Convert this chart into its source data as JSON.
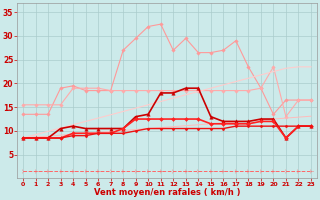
{
  "x": [
    0,
    1,
    2,
    3,
    4,
    5,
    6,
    7,
    8,
    9,
    10,
    11,
    12,
    13,
    14,
    15,
    16,
    17,
    18,
    19,
    20,
    21,
    22,
    23
  ],
  "series": [
    {
      "label": "rafales_spiky",
      "color": "#ff9999",
      "linewidth": 0.8,
      "marker": "D",
      "markersize": 1.8,
      "linestyle": "-",
      "data": [
        13.5,
        13.5,
        13.5,
        19.0,
        19.5,
        18.5,
        18.5,
        18.5,
        27.0,
        29.5,
        32.0,
        32.5,
        27.0,
        29.5,
        26.5,
        26.5,
        27.0,
        29.0,
        23.5,
        19.0,
        13.5,
        16.5,
        16.5,
        16.5
      ]
    },
    {
      "label": "rafales_smooth_high",
      "color": "#ffaaaa",
      "linewidth": 0.8,
      "marker": "D",
      "markersize": 1.8,
      "linestyle": "-",
      "data": [
        15.5,
        15.5,
        15.5,
        15.5,
        19.0,
        19.0,
        19.0,
        18.5,
        18.5,
        18.5,
        18.5,
        18.5,
        18.5,
        18.5,
        18.5,
        18.5,
        18.5,
        18.5,
        18.5,
        19.0,
        23.5,
        13.0,
        16.5,
        16.5
      ]
    },
    {
      "label": "linear_high",
      "color": "#ffcccc",
      "linewidth": 0.8,
      "marker": null,
      "markersize": 0,
      "linestyle": "-",
      "data": [
        8.5,
        9.2,
        9.9,
        10.6,
        11.3,
        12.0,
        12.7,
        13.4,
        14.1,
        14.8,
        15.5,
        16.2,
        16.9,
        17.6,
        18.3,
        19.0,
        19.7,
        20.4,
        21.1,
        21.8,
        22.5,
        23.2,
        23.5,
        23.5
      ]
    },
    {
      "label": "linear_low",
      "color": "#ffbbbb",
      "linewidth": 0.7,
      "marker": null,
      "markersize": 0,
      "linestyle": "-",
      "data": [
        8.5,
        8.7,
        8.9,
        9.1,
        9.3,
        9.5,
        9.7,
        9.9,
        10.1,
        10.3,
        10.5,
        10.7,
        10.9,
        11.1,
        11.3,
        11.5,
        11.7,
        11.9,
        12.1,
        12.3,
        12.5,
        12.7,
        12.9,
        13.1
      ]
    },
    {
      "label": "vent_max_triangle",
      "color": "#cc0000",
      "linewidth": 1.2,
      "marker": "^",
      "markersize": 2.5,
      "linestyle": "-",
      "data": [
        8.5,
        8.5,
        8.5,
        10.5,
        11.0,
        10.5,
        10.5,
        10.5,
        10.5,
        13.0,
        13.5,
        18.0,
        18.0,
        19.0,
        19.0,
        13.0,
        12.0,
        12.0,
        12.0,
        12.5,
        12.5,
        8.5,
        11.0,
        11.0
      ]
    },
    {
      "label": "vent_diamond",
      "color": "#ff2222",
      "linewidth": 1.2,
      "marker": "D",
      "markersize": 2.0,
      "linestyle": "-",
      "data": [
        8.5,
        8.5,
        8.5,
        8.5,
        9.5,
        9.5,
        9.5,
        9.5,
        10.5,
        12.5,
        12.5,
        12.5,
        12.5,
        12.5,
        12.5,
        11.5,
        11.5,
        11.5,
        11.5,
        12.0,
        12.0,
        8.5,
        11.0,
        11.0
      ]
    },
    {
      "label": "vent_base",
      "color": "#ee1111",
      "linewidth": 1.0,
      "marker": "D",
      "markersize": 1.5,
      "linestyle": "-",
      "data": [
        8.5,
        8.5,
        8.5,
        8.5,
        9.0,
        9.0,
        9.5,
        9.5,
        9.5,
        10.0,
        10.5,
        10.5,
        10.5,
        10.5,
        10.5,
        10.5,
        10.5,
        11.0,
        11.0,
        11.0,
        11.0,
        11.0,
        11.0,
        11.0
      ]
    },
    {
      "label": "bottom_dashed",
      "color": "#ff6666",
      "linewidth": 0.7,
      "marker": "4",
      "markersize": 3.5,
      "linestyle": "--",
      "data": [
        1.5,
        1.5,
        1.5,
        1.5,
        1.5,
        1.5,
        1.5,
        1.5,
        1.5,
        1.5,
        1.5,
        1.5,
        1.5,
        1.5,
        1.5,
        1.5,
        1.5,
        1.5,
        1.5,
        1.5,
        1.5,
        1.5,
        1.5,
        1.5
      ]
    }
  ],
  "xlabel": "Vent moyen/en rafales ( km/h )",
  "xlim_min": -0.5,
  "xlim_max": 23.5,
  "ylim_min": 0,
  "ylim_max": 37,
  "yticks": [
    5,
    10,
    15,
    20,
    25,
    30,
    35
  ],
  "xticks": [
    0,
    1,
    2,
    3,
    4,
    5,
    6,
    7,
    8,
    9,
    10,
    11,
    12,
    13,
    14,
    15,
    16,
    17,
    18,
    19,
    20,
    21,
    22,
    23
  ],
  "background_color": "#cceaea",
  "grid_color": "#aacccc",
  "tick_color": "#cc0000",
  "xlabel_color": "#cc0000",
  "xlabel_fontsize": 6.0,
  "tick_fontsize_x": 4.5,
  "tick_fontsize_y": 5.5
}
